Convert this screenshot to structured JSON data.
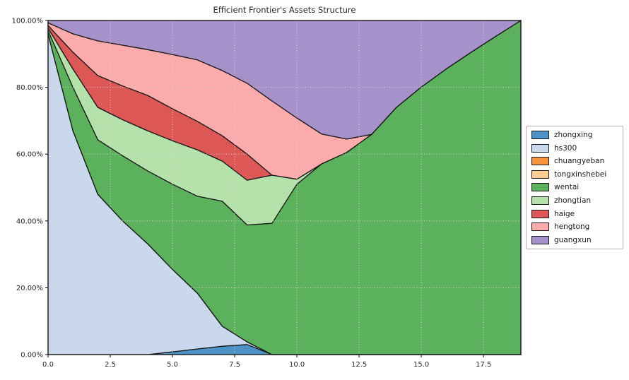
{
  "title": "Efficient Frontier's Assets Structure",
  "chart_data": {
    "type": "area",
    "stacked": true,
    "title": "Efficient Frontier's Assets Structure",
    "xlabel": "",
    "ylabel": "",
    "xlim": [
      0,
      19
    ],
    "ylim": [
      0,
      100
    ],
    "grid": true,
    "grid_style": "dotted",
    "legend_position": "outside-right",
    "edge_color": "#1a1a1a",
    "x": [
      0,
      1,
      2,
      3,
      4,
      5,
      6,
      7,
      8,
      9,
      10,
      11,
      12,
      13,
      14,
      15,
      16,
      17,
      18,
      19
    ],
    "xticks": [
      {
        "value": 0,
        "label": "0.0"
      },
      {
        "value": 2.5,
        "label": "2.5"
      },
      {
        "value": 5,
        "label": "5.0"
      },
      {
        "value": 7.5,
        "label": "7.5"
      },
      {
        "value": 10,
        "label": "10.0"
      },
      {
        "value": 12.5,
        "label": "12.5"
      },
      {
        "value": 15,
        "label": "15.0"
      },
      {
        "value": 17.5,
        "label": "17.5"
      }
    ],
    "yticks": [
      {
        "value": 0,
        "label": "0.00%"
      },
      {
        "value": 20,
        "label": "20.00%"
      },
      {
        "value": 40,
        "label": "40.00%"
      },
      {
        "value": 60,
        "label": "60.00%"
      },
      {
        "value": 80,
        "label": "80.00%"
      },
      {
        "value": 100,
        "label": "100.00%"
      }
    ],
    "series": [
      {
        "name": "zhongxing",
        "color": "#4c92c6",
        "values": [
          0,
          0,
          0,
          0,
          0,
          0.8,
          1.7,
          2.5,
          3.0,
          0,
          0,
          0,
          0,
          0,
          0,
          0,
          0,
          0,
          0,
          0
        ]
      },
      {
        "name": "hs300",
        "color": "#c9d8ec",
        "values": [
          96.0,
          67.0,
          48.0,
          40.0,
          33.2,
          24.7,
          16.7,
          6.0,
          0.8,
          0,
          0,
          0,
          0,
          0,
          0,
          0,
          0,
          0,
          0,
          0
        ]
      },
      {
        "name": "chuangyeban",
        "color": "#f9953c",
        "values": [
          0,
          0,
          0,
          0,
          0,
          0,
          0,
          0,
          0,
          0,
          0,
          0,
          0,
          0,
          0,
          0,
          0,
          0,
          0,
          0
        ]
      },
      {
        "name": "tongxinshebei",
        "color": "#fccd92",
        "values": [
          0,
          0,
          0,
          0,
          0,
          0,
          0,
          0,
          0,
          0,
          0,
          0,
          0,
          0,
          0,
          0,
          0,
          0,
          0,
          0
        ]
      },
      {
        "name": "wentai",
        "color": "#5cb25c",
        "values": [
          1.0,
          13.0,
          16.3,
          19.5,
          21.8,
          25.5,
          29.0,
          37.4,
          35.0,
          39.3,
          51.0,
          57.1,
          60.5,
          65.9,
          74.0,
          80.1,
          85.5,
          90.5,
          95.3,
          100.0
        ]
      },
      {
        "name": "zhongtian",
        "color": "#b5e1aa",
        "values": [
          0.7,
          5.5,
          9.7,
          10.8,
          12.0,
          13.0,
          13.9,
          12.0,
          13.4,
          14.4,
          1.5,
          0,
          0,
          0,
          0,
          0,
          0,
          0,
          0,
          0
        ]
      },
      {
        "name": "haige",
        "color": "#dd5757",
        "values": [
          0.8,
          5.0,
          9.5,
          10.1,
          10.6,
          9.6,
          8.5,
          7.6,
          7.8,
          0,
          0,
          0,
          0,
          0,
          0,
          0,
          0,
          0,
          0,
          0
        ]
      },
      {
        "name": "hengtong",
        "color": "#fbabab",
        "values": [
          0.8,
          5.5,
          10.4,
          12.2,
          13.7,
          16.2,
          18.4,
          19.5,
          21.2,
          22.2,
          18.3,
          8.9,
          4.0,
          0,
          0,
          0,
          0,
          0,
          0,
          0
        ]
      },
      {
        "name": "guangxun",
        "color": "#a791cb",
        "values": [
          0.7,
          4.0,
          6.1,
          7.4,
          8.7,
          10.2,
          11.8,
          15.0,
          18.8,
          24.1,
          29.2,
          34.0,
          35.5,
          34.1,
          26.0,
          19.9,
          14.5,
          9.5,
          4.7,
          0
        ]
      }
    ]
  },
  "axes": {
    "grid_color": "#d4d4d4",
    "spine_color": "#1a1a1a",
    "tick_color": "#262626"
  }
}
